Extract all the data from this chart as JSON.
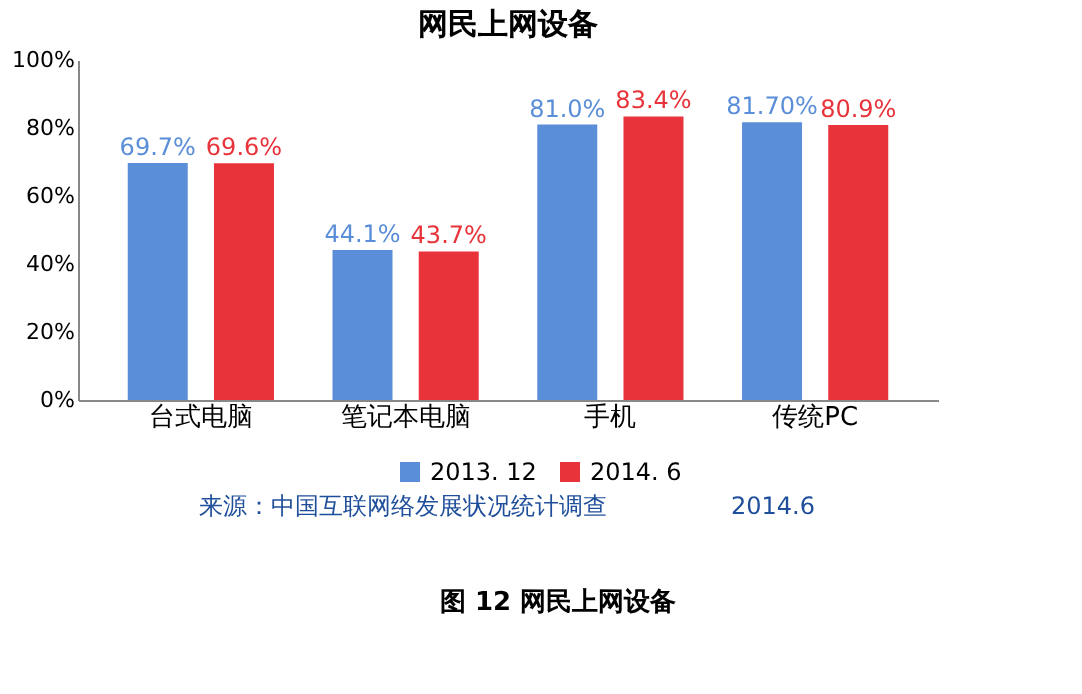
{
  "chart_data": {
    "type": "bar",
    "title": "网民上网设备",
    "categories": [
      "台式电脑",
      "笔记本电脑",
      "手机",
      "传统PC"
    ],
    "series": [
      {
        "name": "2013. 12",
        "color": "#5b8ed8",
        "values": [
          69.7,
          44.1,
          81.0,
          81.7
        ],
        "value_labels": [
          "69.7%",
          "44.1%",
          "81.0%",
          "81.70%"
        ]
      },
      {
        "name": "2014. 6",
        "color": "#e8333b",
        "values": [
          69.6,
          43.7,
          83.4,
          80.9
        ],
        "value_labels": [
          "69.6%",
          "43.7%",
          "83.4%",
          "80.9%"
        ]
      }
    ],
    "ylim": [
      0,
      100
    ],
    "yticks": [
      {
        "value": 0,
        "label": "0%"
      },
      {
        "value": 20,
        "label": "20%"
      },
      {
        "value": 40,
        "label": "40%"
      },
      {
        "value": 60,
        "label": "60%"
      },
      {
        "value": 80,
        "label": "80%"
      },
      {
        "value": 100,
        "label": "100%"
      }
    ],
    "grid": false,
    "legend": "bottom",
    "annotations": [
      "来源：中国互联网络发展状况统计调查",
      "2014.6",
      "图 12 网民上网设备"
    ]
  }
}
